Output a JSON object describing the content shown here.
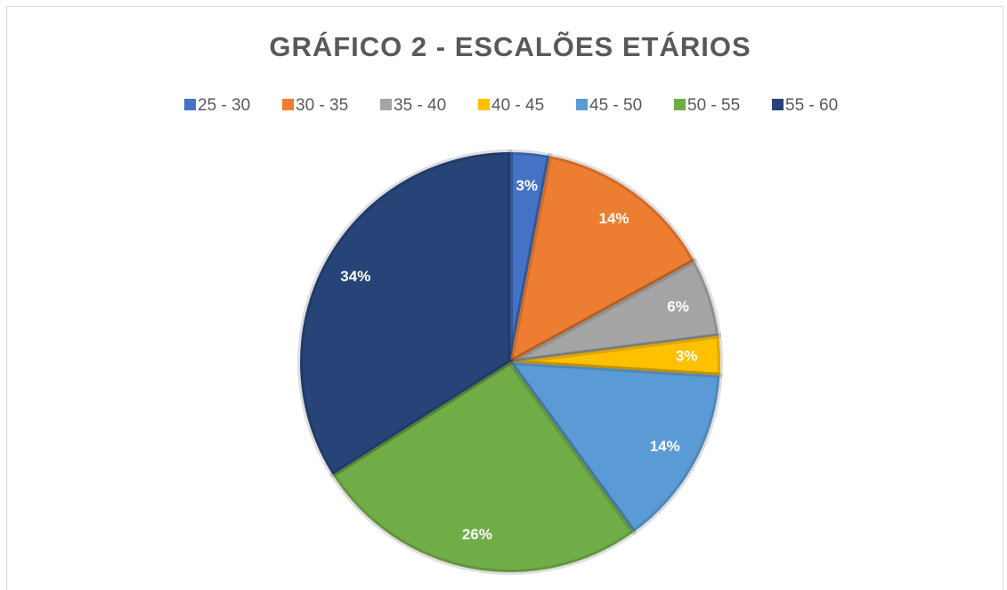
{
  "chart_data": {
    "type": "pie",
    "title": "GRÁFICO 2 - ESCALÕES ETÁRIOS",
    "categories": [
      "25 - 30",
      "30 - 35",
      "35 - 40",
      "40 - 45",
      "45 - 50",
      "50 - 55",
      "55 - 60"
    ],
    "values": [
      3,
      14,
      6,
      3,
      14,
      26,
      34
    ],
    "value_labels": [
      "3%",
      "14%",
      "6%",
      "3%",
      "14%",
      "26%",
      "34%"
    ],
    "colors": [
      "#4472c4",
      "#ed7d31",
      "#a5a5a5",
      "#ffc000",
      "#5b9bd5",
      "#70ad47",
      "#264478"
    ],
    "legend": "top"
  }
}
